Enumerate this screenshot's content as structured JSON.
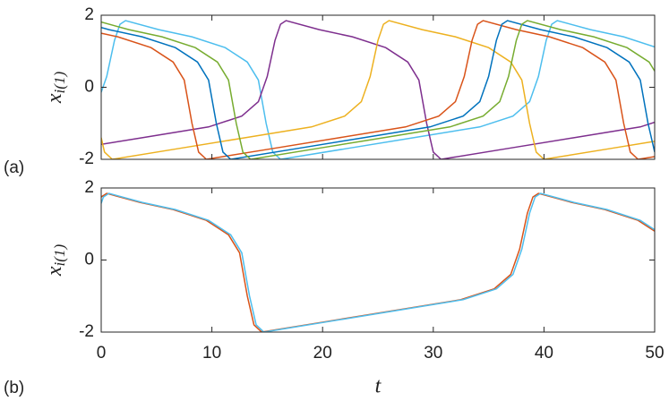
{
  "chart_data": [
    {
      "type": "line",
      "panel_label": "(a)",
      "ylabel": "x",
      "ylabel_sub": "i(1)",
      "xlim": [
        0,
        50
      ],
      "ylim": [
        -2,
        2
      ],
      "xticks": [
        0,
        10,
        20,
        30,
        40,
        50
      ],
      "xticklabels": false,
      "yticks": [
        -2,
        0,
        2
      ],
      "series": [
        {
          "color": "#4DBEEE",
          "x": [
            0,
            0.5,
            1.2,
            1.7,
            2.2,
            5.2,
            8.2,
            11.2,
            13.2,
            14.2,
            14.9,
            15.5,
            16.2,
            22.2,
            28.2,
            34.2,
            37.2,
            38.7,
            39.5,
            40.2,
            40.7,
            41.2,
            44.2,
            47.2,
            50
          ],
          "values": [
            -0.14,
            0.3,
            1.3,
            1.75,
            1.85,
            1.6,
            1.4,
            1.1,
            0.7,
            0.2,
            -1.0,
            -1.8,
            -2.0,
            -1.7,
            -1.4,
            -1.1,
            -0.8,
            -0.4,
            0.3,
            1.3,
            1.75,
            1.85,
            1.6,
            1.4,
            1.12
          ]
        },
        {
          "color": "#7E2F8E",
          "x": [
            0,
            3.7,
            9.7,
            12.7,
            14.2,
            15.0,
            15.7,
            16.2,
            16.7,
            19.7,
            22.7,
            25.7,
            27.7,
            28.7,
            29.4,
            30.0,
            30.7,
            36.7,
            42.7,
            48.7,
            50
          ],
          "values": [
            -1.585,
            -1.4,
            -1.1,
            -0.8,
            -0.4,
            0.3,
            1.3,
            1.75,
            1.85,
            1.6,
            1.4,
            1.1,
            0.7,
            0.2,
            -1.0,
            -1.8,
            -2.0,
            -1.7,
            -1.4,
            -1.1,
            -0.97
          ]
        },
        {
          "color": "#EDB120",
          "x": [
            0,
            0.3,
            1.0,
            7,
            13,
            19,
            22,
            23.5,
            24.3,
            25,
            25.5,
            26,
            29,
            32,
            35,
            37,
            38,
            38.7,
            39.3,
            40,
            46,
            50
          ],
          "values": [
            -1.4,
            -1.8,
            -2.0,
            -1.7,
            -1.4,
            -1.1,
            -0.8,
            -0.4,
            0.3,
            1.3,
            1.75,
            1.85,
            1.6,
            1.4,
            1.1,
            0.7,
            0.2,
            -1.0,
            -1.8,
            -2.0,
            -1.7,
            -1.5
          ]
        },
        {
          "color": "#D95319",
          "x": [
            0,
            1.5,
            4.5,
            6.5,
            7.5,
            8.2,
            8.8,
            9.5,
            15.5,
            21.5,
            27.5,
            30.5,
            32,
            32.8,
            33.5,
            34,
            34.5,
            37.5,
            40.5,
            43.5,
            45.5,
            46.5,
            47.2,
            47.8,
            48.5,
            50
          ],
          "values": [
            1.5,
            1.4,
            1.1,
            0.7,
            0.2,
            -1.0,
            -1.8,
            -2.0,
            -1.7,
            -1.4,
            -1.1,
            -0.8,
            -0.4,
            0.3,
            1.3,
            1.75,
            1.85,
            1.6,
            1.4,
            1.1,
            0.7,
            0.2,
            -1.0,
            -1.8,
            -2.0,
            -1.925
          ]
        },
        {
          "color": "#0072BD",
          "x": [
            0,
            0.7,
            3.7,
            6.7,
            8.7,
            9.7,
            10.4,
            11.0,
            11.7,
            17.7,
            23.7,
            29.7,
            32.7,
            34.2,
            35.0,
            35.7,
            36.2,
            36.7,
            39.7,
            42.7,
            45.7,
            47.7,
            48.7,
            49.4,
            50
          ],
          "values": [
            1.66,
            1.6,
            1.4,
            1.1,
            0.7,
            0.2,
            -1.0,
            -1.8,
            -2.0,
            -1.7,
            -1.4,
            -1.1,
            -0.8,
            -0.4,
            0.3,
            1.3,
            1.75,
            1.85,
            1.6,
            1.4,
            1.1,
            0.7,
            0.2,
            -1.0,
            -1.8
          ]
        },
        {
          "color": "#77AC30",
          "x": [
            0,
            2.5,
            5.5,
            8.5,
            10.5,
            11.5,
            12.2,
            12.8,
            13.5,
            19.5,
            25.5,
            31.5,
            34.5,
            36,
            36.8,
            37.5,
            38,
            38.5,
            41.5,
            44.5,
            47.5,
            49.5,
            50
          ],
          "values": [
            1.81,
            1.6,
            1.4,
            1.1,
            0.7,
            0.2,
            -1.0,
            -1.8,
            -2.0,
            -1.7,
            -1.4,
            -1.1,
            -0.8,
            -0.4,
            0.3,
            1.3,
            1.75,
            1.85,
            1.6,
            1.4,
            1.1,
            0.7,
            0.45
          ]
        }
      ]
    },
    {
      "type": "line",
      "panel_label": "(b)",
      "ylabel": "x",
      "ylabel_sub": "i(1)",
      "xlabel": "t",
      "xlim": [
        0,
        50
      ],
      "ylim": [
        -2,
        2
      ],
      "xticks": [
        0,
        10,
        20,
        30,
        40,
        50
      ],
      "xticklabels": true,
      "yticks": [
        -2,
        0,
        2
      ],
      "series": [
        {
          "color": "#D95319",
          "x": [
            0,
            0.5,
            3.5,
            6.5,
            9.5,
            11.5,
            12.5,
            13.2,
            13.8,
            14.5,
            20.5,
            26.5,
            32.5,
            35.5,
            37,
            37.8,
            38.5,
            39,
            39.5,
            42.5,
            45.5,
            48.5,
            50
          ],
          "values": [
            1.75,
            1.85,
            1.6,
            1.4,
            1.1,
            0.7,
            0.2,
            -1.0,
            -1.8,
            -2.0,
            -1.7,
            -1.4,
            -1.1,
            -0.8,
            -0.4,
            0.3,
            1.3,
            1.75,
            1.85,
            1.6,
            1.4,
            1.1,
            0.8
          ]
        },
        {
          "color": "#4DBEEE",
          "x": [
            0,
            0.2,
            0.7,
            3.7,
            6.7,
            9.7,
            11.7,
            12.7,
            13.4,
            14.0,
            14.7,
            20.7,
            26.7,
            32.7,
            35.7,
            37.2,
            38.0,
            38.7,
            39.2,
            39.7,
            42.7,
            45.7,
            48.7,
            50
          ],
          "values": [
            1.57,
            1.75,
            1.85,
            1.6,
            1.4,
            1.1,
            0.7,
            0.2,
            -1.0,
            -1.8,
            -2.0,
            -1.7,
            -1.4,
            -1.1,
            -0.8,
            -0.4,
            0.3,
            1.3,
            1.75,
            1.85,
            1.6,
            1.4,
            1.1,
            0.84
          ]
        }
      ]
    }
  ]
}
